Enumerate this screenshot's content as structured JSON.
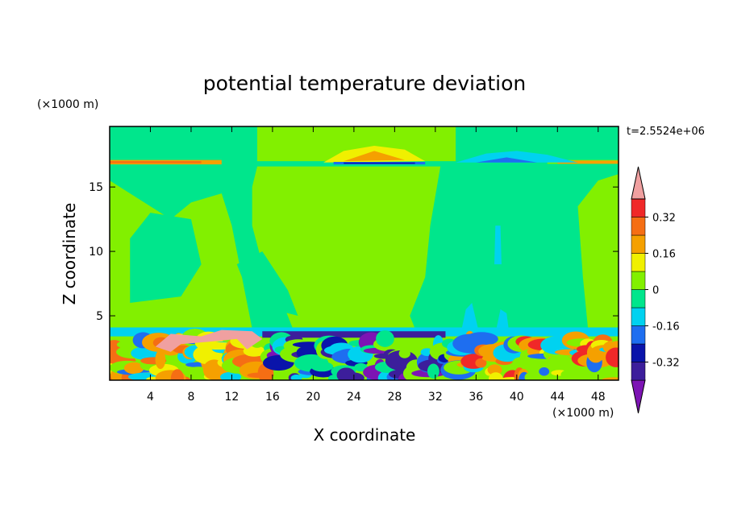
{
  "chart_data": {
    "type": "contour",
    "title": "potential temperature deviation",
    "xlabel": "X coordinate",
    "ylabel": "Z coordinate",
    "x_unit": "(×1000 m)",
    "y_unit": "(×1000 m)",
    "annotation": "t=2.5524e+06",
    "xlim": [
      0,
      50
    ],
    "xticks": [
      4,
      8,
      12,
      16,
      20,
      24,
      28,
      32,
      36,
      40,
      44,
      48
    ],
    "ylim": [
      0,
      19.7
    ],
    "yticks": [
      5,
      10,
      15
    ],
    "levels": [
      -0.4,
      -0.32,
      -0.24,
      -0.16,
      -0.08,
      0,
      0.08,
      0.16,
      0.24,
      0.32,
      0.4
    ],
    "colorbar_ticks": [
      -0.32,
      -0.16,
      0,
      0.16,
      0.32
    ],
    "colors": [
      "#7d14b4",
      "#3c1e9b",
      "#0a14aa",
      "#1e6ef0",
      "#00d2f0",
      "#00e68c",
      "#82f000",
      "#f0f000",
      "#f5a000",
      "#f56e14",
      "#f02828",
      "#f0a0a0"
    ]
  }
}
